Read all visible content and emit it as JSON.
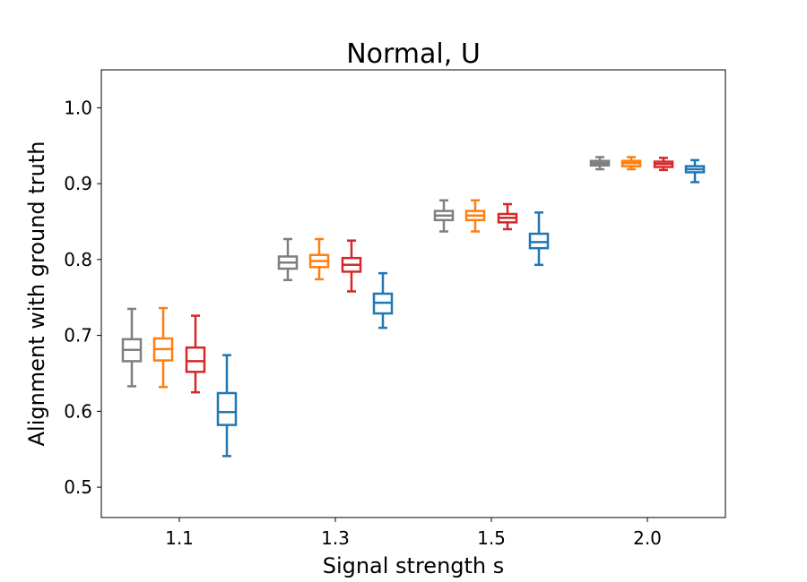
{
  "chart_data": {
    "type": "box",
    "title": "Normal, U",
    "xlabel": "Signal strength s",
    "ylabel": "Alignment with ground truth",
    "ylim": [
      0.46,
      1.05
    ],
    "yticks": [
      0.5,
      0.6,
      0.7,
      0.8,
      0.9,
      1.0
    ],
    "ytick_labels": [
      "0.5",
      "0.6",
      "0.7",
      "0.8",
      "0.9",
      "1.0"
    ],
    "categories": [
      "1.1",
      "1.3",
      "1.5",
      "2.0"
    ],
    "grid": false,
    "legend": "none",
    "series": [
      {
        "color": "#7f7f7f",
        "boxes": [
          {
            "whisker_low": 0.633,
            "q1": 0.666,
            "median": 0.681,
            "q3": 0.695,
            "whisker_high": 0.735
          },
          {
            "whisker_low": 0.773,
            "q1": 0.788,
            "median": 0.796,
            "q3": 0.804,
            "whisker_high": 0.827
          },
          {
            "whisker_low": 0.837,
            "q1": 0.852,
            "median": 0.858,
            "q3": 0.864,
            "whisker_high": 0.878
          },
          {
            "whisker_low": 0.919,
            "q1": 0.924,
            "median": 0.927,
            "q3": 0.93,
            "whisker_high": 0.935
          }
        ]
      },
      {
        "color": "#ff7f0e",
        "boxes": [
          {
            "whisker_low": 0.632,
            "q1": 0.667,
            "median": 0.682,
            "q3": 0.696,
            "whisker_high": 0.736
          },
          {
            "whisker_low": 0.774,
            "q1": 0.79,
            "median": 0.798,
            "q3": 0.806,
            "whisker_high": 0.827
          },
          {
            "whisker_low": 0.837,
            "q1": 0.852,
            "median": 0.858,
            "q3": 0.864,
            "whisker_high": 0.878
          },
          {
            "whisker_low": 0.919,
            "q1": 0.923,
            "median": 0.927,
            "q3": 0.93,
            "whisker_high": 0.935
          }
        ]
      },
      {
        "color": "#d62728",
        "boxes": [
          {
            "whisker_low": 0.625,
            "q1": 0.652,
            "median": 0.666,
            "q3": 0.684,
            "whisker_high": 0.726
          },
          {
            "whisker_low": 0.758,
            "q1": 0.784,
            "median": 0.793,
            "q3": 0.802,
            "whisker_high": 0.825
          },
          {
            "whisker_low": 0.84,
            "q1": 0.849,
            "median": 0.855,
            "q3": 0.86,
            "whisker_high": 0.873
          },
          {
            "whisker_low": 0.918,
            "q1": 0.922,
            "median": 0.926,
            "q3": 0.929,
            "whisker_high": 0.934
          }
        ]
      },
      {
        "color": "#1f77b4",
        "boxes": [
          {
            "whisker_low": 0.541,
            "q1": 0.582,
            "median": 0.599,
            "q3": 0.624,
            "whisker_high": 0.674
          },
          {
            "whisker_low": 0.71,
            "q1": 0.729,
            "median": 0.743,
            "q3": 0.755,
            "whisker_high": 0.782
          },
          {
            "whisker_low": 0.793,
            "q1": 0.815,
            "median": 0.823,
            "q3": 0.834,
            "whisker_high": 0.862
          },
          {
            "whisker_low": 0.902,
            "q1": 0.915,
            "median": 0.919,
            "q3": 0.923,
            "whisker_high": 0.931
          }
        ]
      }
    ]
  }
}
